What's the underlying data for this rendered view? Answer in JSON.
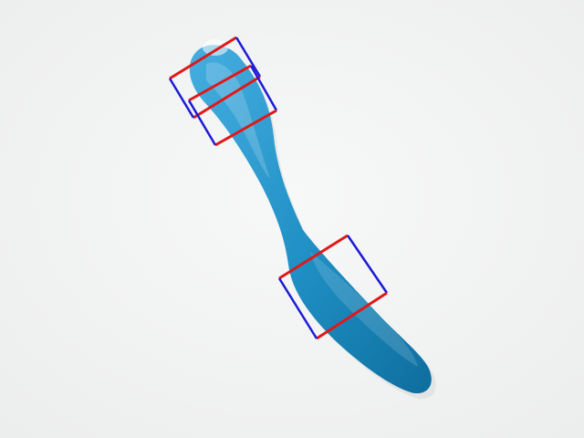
{
  "scene": {
    "background_color": "#f2f3f3",
    "object": {
      "label": "plastic knife",
      "color": "#1f8fc4",
      "highlight_color": "#46aee0",
      "shadow_color": "#0e6e9e"
    },
    "annotations": {
      "edge_color_a": "#e01818",
      "edge_color_b": "#1c1cd6",
      "count": 3
    }
  }
}
